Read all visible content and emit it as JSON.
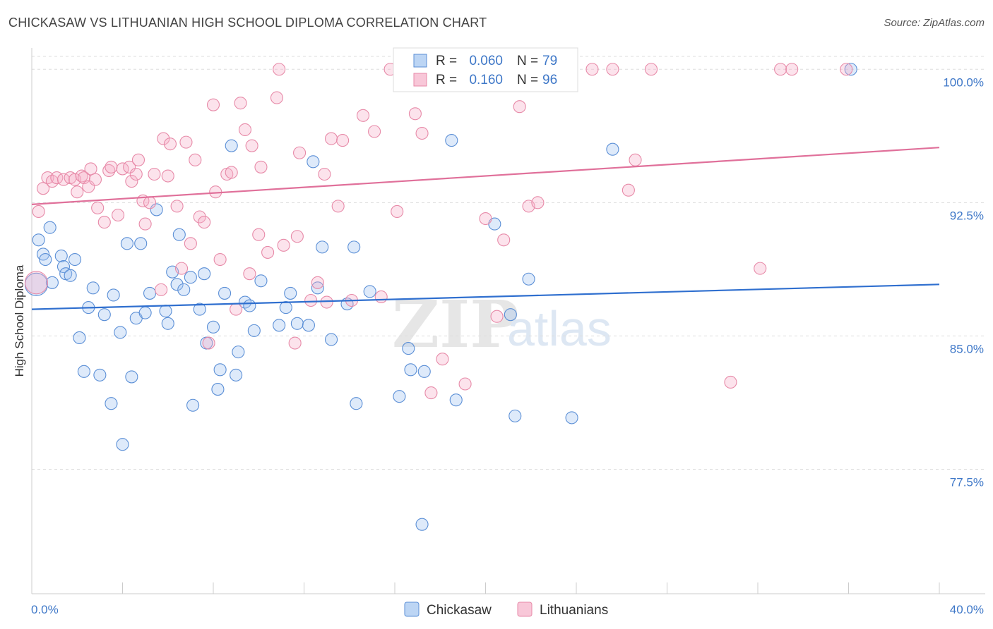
{
  "title": "CHICKASAW VS LITHUANIAN HIGH SCHOOL DIPLOMA CORRELATION CHART",
  "source": "Source: ZipAtlas.com",
  "watermark": {
    "zip": "ZIP",
    "atlas": "atlas"
  },
  "colors": {
    "blue": "#5b8fd6",
    "blue_fill": "rgba(160,195,240,0.35)",
    "blue_line": "#2f6fcf",
    "pink": "#e78aa8",
    "pink_fill": "rgba(245,175,200,0.35)",
    "pink_line": "#e0709a",
    "tick_label": "#3f78c8",
    "grid": "#dddddd"
  },
  "legend": {
    "rows": [
      {
        "r_label": "R =",
        "r_value": "0.060",
        "n_label": "N =",
        "n_value": "79"
      },
      {
        "r_label": "R =",
        "r_value": "0.160",
        "n_label": "N =",
        "n_value": "96"
      }
    ]
  },
  "bottom_legend": [
    "Chickasaw",
    "Lithuanians"
  ],
  "chart_data": {
    "type": "scatter",
    "title": "CHICKASAW VS LITHUANIAN HIGH SCHOOL DIPLOMA CORRELATION CHART",
    "xlabel": "",
    "ylabel": "High School Diploma",
    "xlim": [
      0,
      40
    ],
    "ylim": [
      70.5,
      101.2
    ],
    "x_tick_labels": [
      "0.0%",
      "40.0%"
    ],
    "y_ticks": [
      77.5,
      85.0,
      92.5,
      100.0
    ],
    "y_tick_labels": [
      "77.5%",
      "85.0%",
      "92.5%",
      "100.0%"
    ],
    "grid": true,
    "series": [
      {
        "name": "Chickasaw",
        "trend": {
          "x": [
            0,
            40
          ],
          "y": [
            86.5,
            87.9
          ]
        },
        "points": [
          [
            0.2,
            87.9
          ],
          [
            0.3,
            90.4
          ],
          [
            0.5,
            89.6
          ],
          [
            0.6,
            89.3
          ],
          [
            0.8,
            91.1
          ],
          [
            0.9,
            88
          ],
          [
            1.3,
            89.5
          ],
          [
            1.4,
            88.9
          ],
          [
            1.5,
            88.5
          ],
          [
            1.7,
            88.4
          ],
          [
            1.9,
            89.3
          ],
          [
            2.1,
            84.9
          ],
          [
            2.3,
            83
          ],
          [
            2.5,
            86.6
          ],
          [
            2.7,
            87.7
          ],
          [
            3.0,
            82.8
          ],
          [
            3.2,
            86.2
          ],
          [
            3.5,
            81.2
          ],
          [
            3.6,
            87.3
          ],
          [
            3.9,
            85.2
          ],
          [
            4.0,
            78.9
          ],
          [
            4.2,
            90.2
          ],
          [
            4.4,
            82.7
          ],
          [
            4.6,
            86
          ],
          [
            4.8,
            90.2
          ],
          [
            5.0,
            86.3
          ],
          [
            5.2,
            87.4
          ],
          [
            5.5,
            92.1
          ],
          [
            5.9,
            86.4
          ],
          [
            6.0,
            85.7
          ],
          [
            6.2,
            88.6
          ],
          [
            6.4,
            87.9
          ],
          [
            6.5,
            90.7
          ],
          [
            6.7,
            87.6
          ],
          [
            7.0,
            88.3
          ],
          [
            7.1,
            81.1
          ],
          [
            7.4,
            86.5
          ],
          [
            7.6,
            88.5
          ],
          [
            7.7,
            84.6
          ],
          [
            8.0,
            85.5
          ],
          [
            8.2,
            82
          ],
          [
            8.3,
            83.1
          ],
          [
            8.5,
            87.4
          ],
          [
            8.8,
            95.7
          ],
          [
            9.0,
            82.8
          ],
          [
            9.1,
            84.1
          ],
          [
            9.4,
            86.9
          ],
          [
            9.6,
            86.7
          ],
          [
            9.8,
            85.3
          ],
          [
            10.1,
            88.1
          ],
          [
            10.9,
            85.6
          ],
          [
            11.2,
            86.6
          ],
          [
            11.4,
            87.4
          ],
          [
            11.7,
            85.7
          ],
          [
            12.2,
            85.6
          ],
          [
            12.4,
            94.8
          ],
          [
            12.6,
            87.7
          ],
          [
            12.8,
            90
          ],
          [
            13.2,
            84.8
          ],
          [
            13.9,
            86.8
          ],
          [
            14.2,
            90
          ],
          [
            14.3,
            81.2
          ],
          [
            14.9,
            87.5
          ],
          [
            16.2,
            81.6
          ],
          [
            16.6,
            84.3
          ],
          [
            16.7,
            83.1
          ],
          [
            17.2,
            74.4
          ],
          [
            17.3,
            83
          ],
          [
            18.5,
            96
          ],
          [
            18.7,
            81.4
          ],
          [
            20.4,
            91.3
          ],
          [
            21.1,
            86.2
          ],
          [
            21.3,
            80.5
          ],
          [
            21.9,
            88.2
          ],
          [
            23.8,
            80.4
          ],
          [
            25.6,
            95.5
          ],
          [
            36.1,
            100
          ]
        ]
      },
      {
        "name": "Lithuanians",
        "trend": {
          "x": [
            0,
            40
          ],
          "y": [
            92.4,
            95.6
          ]
        },
        "points": [
          [
            0.2,
            88
          ],
          [
            0.3,
            92
          ],
          [
            0.5,
            93.3
          ],
          [
            0.7,
            93.9
          ],
          [
            0.9,
            93.7
          ],
          [
            1.1,
            93.9
          ],
          [
            1.4,
            93.8
          ],
          [
            1.7,
            93.9
          ],
          [
            1.9,
            93.8
          ],
          [
            2.0,
            93.1
          ],
          [
            2.2,
            94
          ],
          [
            2.3,
            93.9
          ],
          [
            2.5,
            93.4
          ],
          [
            2.6,
            94.4
          ],
          [
            2.8,
            93.8
          ],
          [
            2.9,
            92.2
          ],
          [
            3.2,
            91.4
          ],
          [
            3.4,
            94.3
          ],
          [
            3.5,
            94.5
          ],
          [
            3.8,
            91.8
          ],
          [
            4.0,
            94.4
          ],
          [
            4.3,
            94.5
          ],
          [
            4.4,
            93.7
          ],
          [
            4.6,
            94.1
          ],
          [
            4.7,
            94.9
          ],
          [
            4.9,
            92.6
          ],
          [
            5.0,
            91.3
          ],
          [
            5.2,
            92.5
          ],
          [
            5.4,
            94.1
          ],
          [
            5.7,
            87.6
          ],
          [
            5.8,
            96.1
          ],
          [
            6.0,
            94
          ],
          [
            6.1,
            95.8
          ],
          [
            6.4,
            92.3
          ],
          [
            6.6,
            88.8
          ],
          [
            6.8,
            95.9
          ],
          [
            7.0,
            90.2
          ],
          [
            7.2,
            94.9
          ],
          [
            7.4,
            91.7
          ],
          [
            7.6,
            91.4
          ],
          [
            7.8,
            84.6
          ],
          [
            8.0,
            98
          ],
          [
            8.1,
            93.1
          ],
          [
            8.3,
            89.3
          ],
          [
            8.6,
            94.1
          ],
          [
            8.8,
            94.2
          ],
          [
            9.0,
            86.5
          ],
          [
            9.2,
            98.1
          ],
          [
            9.4,
            96.6
          ],
          [
            9.6,
            88.5
          ],
          [
            9.7,
            95.7
          ],
          [
            10.0,
            90.7
          ],
          [
            10.1,
            94.5
          ],
          [
            10.4,
            89.7
          ],
          [
            10.8,
            98.4
          ],
          [
            10.9,
            100
          ],
          [
            11.1,
            90.1
          ],
          [
            11.6,
            84.6
          ],
          [
            11.7,
            90.6
          ],
          [
            11.8,
            95.3
          ],
          [
            12.3,
            87
          ],
          [
            12.6,
            88
          ],
          [
            12.9,
            94.1
          ],
          [
            13.0,
            86.9
          ],
          [
            13.2,
            96.1
          ],
          [
            13.5,
            92.3
          ],
          [
            13.7,
            96
          ],
          [
            14.1,
            87
          ],
          [
            14.6,
            97.4
          ],
          [
            15.1,
            96.5
          ],
          [
            15.4,
            87.2
          ],
          [
            15.8,
            100
          ],
          [
            16.1,
            92
          ],
          [
            16.8,
            100
          ],
          [
            16.9,
            97.5
          ],
          [
            17.2,
            96.4
          ],
          [
            17.6,
            81.8
          ],
          [
            18.1,
            83.7
          ],
          [
            18.6,
            100
          ],
          [
            19.1,
            82.3
          ],
          [
            20.0,
            91.6
          ],
          [
            20.5,
            86.1
          ],
          [
            20.8,
            90.4
          ],
          [
            21.5,
            97.9
          ],
          [
            21.9,
            92.3
          ],
          [
            22.3,
            92.5
          ],
          [
            22.8,
            100
          ],
          [
            23.6,
            100
          ],
          [
            24.7,
            100
          ],
          [
            25.6,
            100
          ],
          [
            26.3,
            93.2
          ],
          [
            26.6,
            94.9
          ],
          [
            27.3,
            100
          ],
          [
            30.8,
            82.4
          ],
          [
            32.1,
            88.8
          ],
          [
            33.0,
            100
          ],
          [
            33.5,
            100
          ],
          [
            35.9,
            100
          ]
        ]
      }
    ]
  }
}
